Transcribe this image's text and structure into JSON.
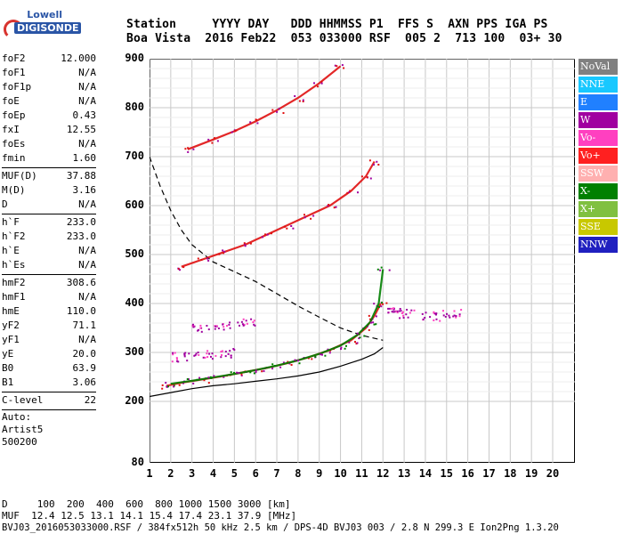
{
  "logo": {
    "line1": "Lowell",
    "line2": "DIGISONDE"
  },
  "header": {
    "line1": "Station     YYYY DAY   DDD HHMMSS P1  FFS S  AXN PPS IGA PS",
    "line2": "Boa Vista  2016 Feb22  053 033000 RSF  005 2  713 100  03+ 30"
  },
  "params_group1": [
    {
      "k": "foF2",
      "v": "12.000"
    },
    {
      "k": "foF1",
      "v": "N/A"
    },
    {
      "k": "foF1p",
      "v": "N/A"
    },
    {
      "k": "foE",
      "v": "N/A"
    },
    {
      "k": "foEp",
      "v": "0.43"
    },
    {
      "k": "fxI",
      "v": "12.55"
    },
    {
      "k": "foEs",
      "v": "N/A"
    },
    {
      "k": "fmin",
      "v": "1.60"
    }
  ],
  "params_group2": [
    {
      "k": "MUF(D)",
      "v": "37.88"
    },
    {
      "k": "M(D)",
      "v": "3.16"
    },
    {
      "k": "D",
      "v": "N/A"
    }
  ],
  "params_group3": [
    {
      "k": "h`F",
      "v": "233.0"
    },
    {
      "k": "h`F2",
      "v": "233.0"
    },
    {
      "k": "h`E",
      "v": "N/A"
    },
    {
      "k": "h`Es",
      "v": "N/A"
    }
  ],
  "params_group4": [
    {
      "k": "hmF2",
      "v": "308.6"
    },
    {
      "k": "hmF1",
      "v": "N/A"
    },
    {
      "k": "hmE",
      "v": "110.0"
    },
    {
      "k": "yF2",
      "v": "71.1"
    },
    {
      "k": "yF1",
      "v": "N/A"
    },
    {
      "k": "yE",
      "v": "20.0"
    },
    {
      "k": "B0",
      "v": "63.9"
    },
    {
      "k": "B1",
      "v": "3.06"
    }
  ],
  "params_group5": [
    {
      "k": "C-level",
      "v": "22"
    }
  ],
  "auto": {
    "line1": "Auto:",
    "line2": "Artist5",
    "line3": "500200"
  },
  "legend": [
    {
      "label": "NoVal",
      "color": "#808080"
    },
    {
      "label": "NNE",
      "color": "#18c8ff"
    },
    {
      "label": "E",
      "color": "#2080ff"
    },
    {
      "label": "W",
      "color": "#a000a0"
    },
    {
      "label": "Vo-",
      "color": "#ff40c0"
    },
    {
      "label": "Vo+",
      "color": "#ff2020"
    },
    {
      "label": "SSW",
      "color": "#ffb0b0"
    },
    {
      "label": "X-",
      "color": "#008000"
    },
    {
      "label": "X+",
      "color": "#80c040"
    },
    {
      "label": "SSE",
      "color": "#c8c800"
    },
    {
      "label": "NNW",
      "color": "#2020c0"
    }
  ],
  "chart_data": {
    "type": "scatter",
    "x_ticks": [
      "1",
      "2",
      "3",
      "4",
      "5",
      "6",
      "7",
      "8",
      "9",
      "10",
      "11",
      "12",
      "13",
      "14",
      "15",
      "16",
      "17",
      "18",
      "19",
      "20"
    ],
    "y_ticks": [
      "900",
      "800",
      "700",
      "600",
      "500",
      "400",
      "300",
      "200",
      "80"
    ],
    "xlim": [
      1,
      20
    ],
    "ylim": [
      80,
      900
    ],
    "grid": true,
    "series": [
      {
        "name": "Vo+",
        "color": "#e01010",
        "trace": [
          [
            1.8,
            232
          ],
          [
            2.5,
            238
          ],
          [
            3.5,
            245
          ],
          [
            4.5,
            252
          ],
          [
            5.5,
            260
          ],
          [
            6.5,
            268
          ],
          [
            7.5,
            278
          ],
          [
            8.5,
            290
          ],
          [
            9.5,
            305
          ],
          [
            10.5,
            325
          ],
          [
            11.2,
            350
          ],
          [
            11.6,
            375
          ],
          [
            11.9,
            400
          ]
        ]
      },
      {
        "name": "X-",
        "color": "#008000",
        "trace": [
          [
            2.0,
            236
          ],
          [
            3.0,
            242
          ],
          [
            4.0,
            249
          ],
          [
            5.0,
            256
          ],
          [
            6.0,
            264
          ],
          [
            7.0,
            273
          ],
          [
            8.0,
            284
          ],
          [
            9.0,
            297
          ],
          [
            10.0,
            314
          ],
          [
            10.8,
            336
          ],
          [
            11.4,
            362
          ],
          [
            11.8,
            400
          ],
          [
            12.0,
            470
          ]
        ]
      },
      {
        "name": "Vo+ 2F",
        "color": "#e01010",
        "trace": [
          [
            2.5,
            475
          ],
          [
            3.5,
            490
          ],
          [
            4.5,
            505
          ],
          [
            5.5,
            520
          ],
          [
            6.5,
            540
          ],
          [
            7.5,
            560
          ],
          [
            8.5,
            580
          ],
          [
            9.5,
            600
          ],
          [
            10.5,
            630
          ],
          [
            11.2,
            660
          ],
          [
            11.6,
            690
          ]
        ]
      },
      {
        "name": "Vo+ 3F",
        "color": "#e01010",
        "trace": [
          [
            2.8,
            715
          ],
          [
            4.0,
            735
          ],
          [
            5.0,
            752
          ],
          [
            6.0,
            772
          ],
          [
            7.0,
            795
          ],
          [
            8.0,
            820
          ],
          [
            9.0,
            850
          ],
          [
            10.0,
            885
          ]
        ]
      },
      {
        "name": "W",
        "color": "#a000a0",
        "cluster": [
          [
            3.4,
            352
          ],
          [
            4.5,
            355
          ],
          [
            5.5,
            362
          ],
          [
            2.5,
            292
          ],
          [
            3.5,
            296
          ],
          [
            4.5,
            300
          ],
          [
            12.6,
            385
          ],
          [
            15.2,
            380
          ],
          [
            14.2,
            375
          ],
          [
            13.0,
            380
          ]
        ]
      }
    ],
    "profile_solid": [
      [
        1.0,
        210
      ],
      [
        2.0,
        218
      ],
      [
        3.0,
        226
      ],
      [
        4.0,
        232
      ],
      [
        5.0,
        236
      ],
      [
        6.0,
        241
      ],
      [
        7.0,
        246
      ],
      [
        8.0,
        252
      ],
      [
        9.0,
        260
      ],
      [
        10.0,
        272
      ],
      [
        11.0,
        286
      ],
      [
        11.6,
        297
      ],
      [
        12.0,
        310
      ]
    ],
    "profile_dashed": [
      [
        1.0,
        700
      ],
      [
        1.5,
        640
      ],
      [
        2.0,
        590
      ],
      [
        2.5,
        550
      ],
      [
        3.0,
        520
      ],
      [
        4.0,
        485
      ],
      [
        5.0,
        465
      ],
      [
        6.0,
        445
      ],
      [
        7.0,
        420
      ],
      [
        8.0,
        395
      ],
      [
        9.0,
        372
      ],
      [
        10.0,
        350
      ],
      [
        11.0,
        335
      ],
      [
        12.0,
        325
      ]
    ]
  },
  "footer": {
    "line1": "D     100  200  400  600  800 1000 1500 3000 [km]",
    "line2": "MUF  12.4 12.5 13.1 14.1 15.4 17.4 23.1 37.9 [MHz]",
    "line3": "BVJ03_2016053033000.RSF / 384fx512h 50 kHz 2.5 km / DPS-4D BVJ03 003 / 2.8 N 299.3 E Ion2Png 1.3.20"
  }
}
